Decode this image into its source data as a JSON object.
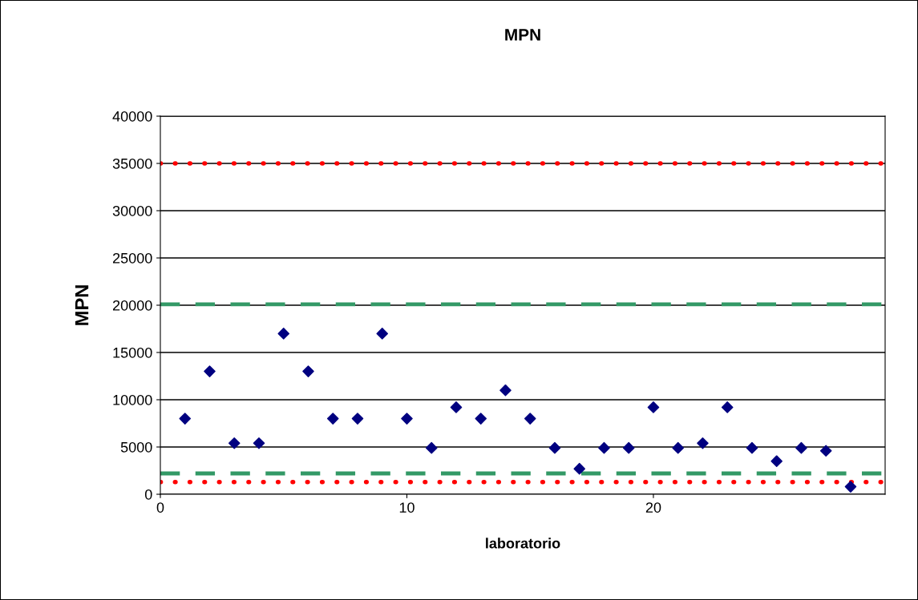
{
  "chart_data": {
    "type": "scatter",
    "title": "MPN",
    "xlabel": "laboratorio",
    "ylabel": "MPN",
    "x": [
      1,
      2,
      3,
      4,
      5,
      6,
      7,
      8,
      9,
      10,
      11,
      12,
      13,
      14,
      15,
      16,
      17,
      18,
      19,
      20,
      21,
      22,
      23,
      24,
      25,
      26,
      27,
      28
    ],
    "series": [
      {
        "color": "#000080",
        "values": [
          8000,
          13000,
          5400,
          5400,
          17000,
          13000,
          8000,
          8000,
          17000,
          8000,
          4900,
          9200,
          8000,
          11000,
          8000,
          4900,
          2700,
          4900,
          4900,
          9200,
          4900,
          5400,
          9200,
          4900,
          3500,
          4900,
          4600,
          800
        ]
      }
    ],
    "marker": "diamond",
    "xlim": [
      0,
      29.4
    ],
    "xticks": [
      0,
      10,
      20
    ],
    "ylim": [
      0,
      40000
    ],
    "yticks": [
      0,
      5000,
      10000,
      15000,
      20000,
      25000,
      30000,
      35000,
      40000
    ],
    "grid": "y",
    "ref_lines": [
      {
        "axis": "y",
        "value": 35000,
        "color": "#ff0000",
        "line_style": "dotted"
      },
      {
        "axis": "y",
        "value": 20100,
        "color": "#339966",
        "line_style": "dashed"
      },
      {
        "axis": "y",
        "value": 2200,
        "color": "#339966",
        "line_style": "dashed"
      },
      {
        "axis": "y",
        "value": 1300,
        "color": "#ff0000",
        "line_style": "dotted"
      }
    ]
  }
}
